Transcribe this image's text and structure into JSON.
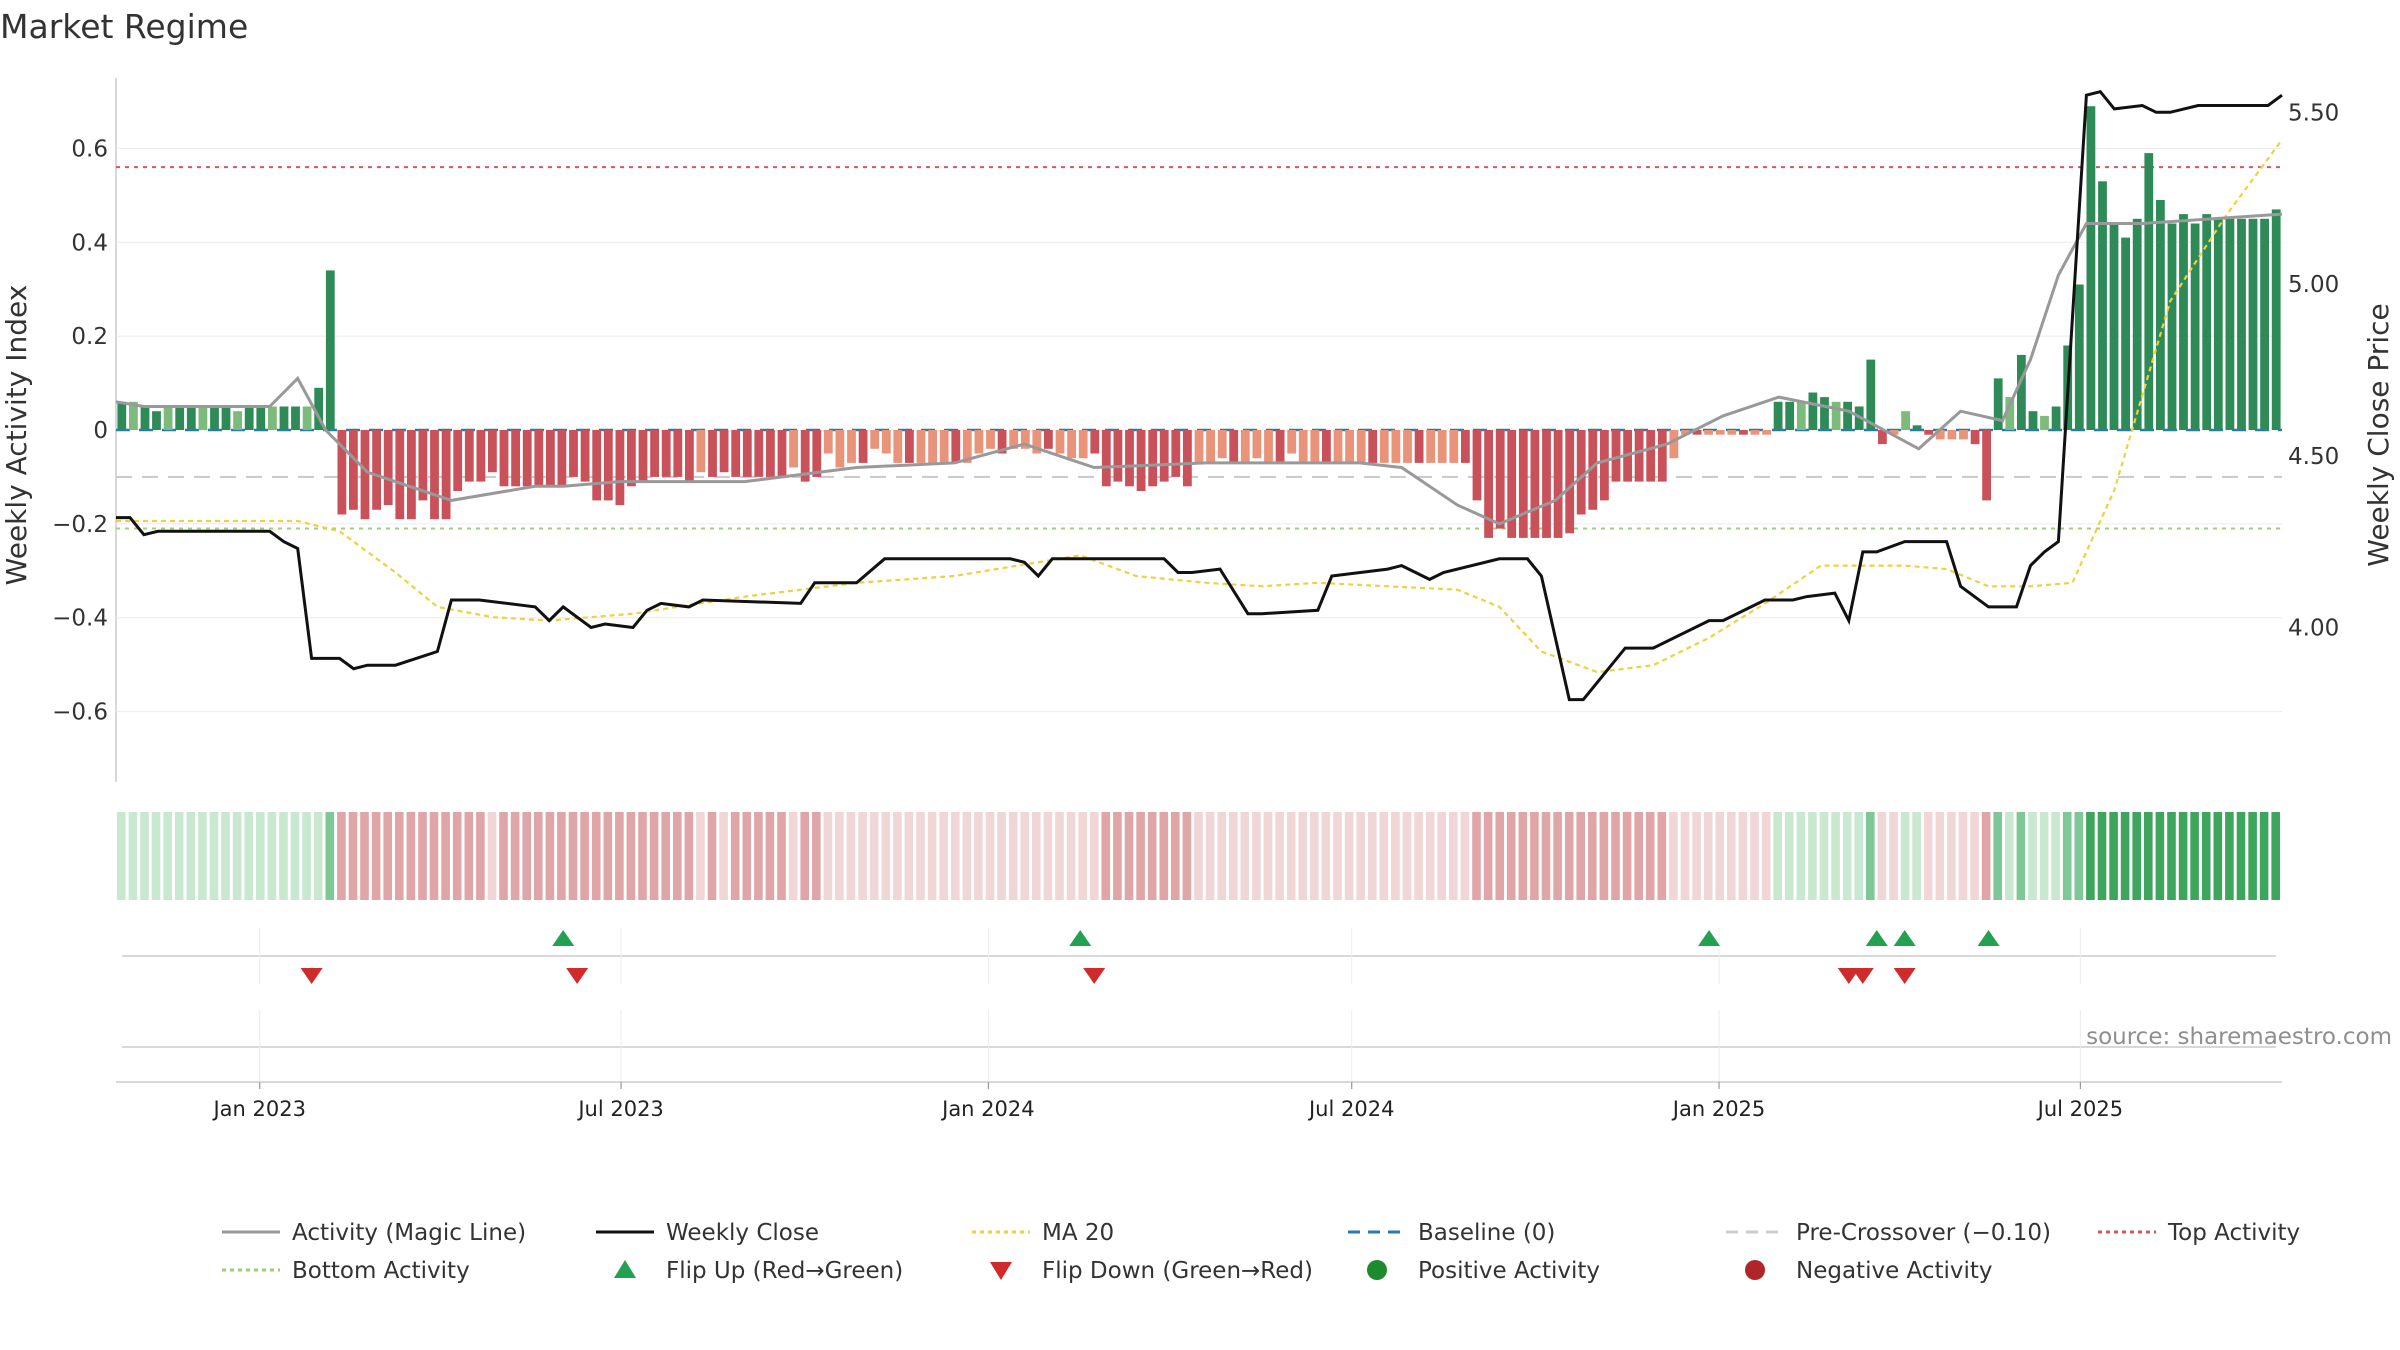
{
  "page": {
    "title": "Market Regime",
    "source": "source: sharemaestro.com"
  },
  "chart_data": {
    "type": "bar",
    "title": "Market Regime",
    "ylabel": "Weekly Activity Index",
    "y2label": "Weekly Close Price",
    "ylim": [
      -0.75,
      0.75
    ],
    "y2lim": [
      3.55,
      5.6
    ],
    "yticks": [
      {
        "value": 0.6,
        "label": "0.6"
      },
      {
        "value": 0.4,
        "label": "0.4"
      },
      {
        "value": 0.2,
        "label": "0.2"
      },
      {
        "value": 0,
        "label": "0"
      },
      {
        "value": -0.2,
        "label": "−0.2"
      },
      {
        "value": -0.4,
        "label": "−0.4"
      },
      {
        "value": -0.6,
        "label": "−0.6"
      }
    ],
    "y2ticks": [
      {
        "value": 5.5,
        "label": "5.50"
      },
      {
        "value": 5.0,
        "label": "5.00"
      },
      {
        "value": 4.5,
        "label": "4.50"
      },
      {
        "value": 4.0,
        "label": "4.00"
      }
    ],
    "x_start": "2022-10-21",
    "x_end": "2025-10-10",
    "xticks": [
      {
        "date": "2023-01-01",
        "label": "Jan 2023"
      },
      {
        "date": "2023-07-01",
        "label": "Jul 2023"
      },
      {
        "date": "2024-01-01",
        "label": "Jan 2024"
      },
      {
        "date": "2024-07-01",
        "label": "Jul 2024"
      },
      {
        "date": "2025-01-01",
        "label": "Jan 2025"
      },
      {
        "date": "2025-07-01",
        "label": "Jul 2025"
      }
    ],
    "reference_lines": {
      "baseline": 0,
      "pre_crossover": -0.1,
      "top_activity": 0.56,
      "bottom_activity": -0.21
    },
    "activity_index": [
      0.06,
      0.06,
      0.05,
      0.04,
      0.05,
      0.05,
      0.05,
      0.05,
      0.05,
      0.05,
      0.04,
      0.05,
      0.05,
      0.05,
      0.05,
      0.05,
      0.05,
      0.09,
      0.34,
      -0.18,
      -0.17,
      -0.19,
      -0.17,
      -0.16,
      -0.19,
      -0.19,
      -0.15,
      -0.19,
      -0.19,
      -0.13,
      -0.11,
      -0.11,
      -0.09,
      -0.12,
      -0.12,
      -0.12,
      -0.12,
      -0.12,
      -0.12,
      -0.1,
      -0.11,
      -0.15,
      -0.15,
      -0.16,
      -0.12,
      -0.11,
      -0.1,
      -0.1,
      -0.1,
      -0.11,
      -0.09,
      -0.1,
      -0.09,
      -0.1,
      -0.1,
      -0.1,
      -0.1,
      -0.1,
      -0.08,
      -0.11,
      -0.1,
      -0.05,
      -0.08,
      -0.07,
      -0.07,
      -0.04,
      -0.05,
      -0.07,
      -0.07,
      -0.07,
      -0.07,
      -0.07,
      -0.07,
      -0.07,
      -0.05,
      -0.04,
      -0.05,
      -0.04,
      -0.04,
      -0.05,
      -0.04,
      -0.05,
      -0.06,
      -0.06,
      -0.05,
      -0.12,
      -0.11,
      -0.12,
      -0.13,
      -0.12,
      -0.11,
      -0.1,
      -0.12,
      -0.07,
      -0.07,
      -0.06,
      -0.07,
      -0.07,
      -0.06,
      -0.07,
      -0.07,
      -0.05,
      -0.07,
      -0.07,
      -0.07,
      -0.07,
      -0.07,
      -0.07,
      -0.07,
      -0.07,
      -0.07,
      -0.07,
      -0.07,
      -0.07,
      -0.07,
      -0.07,
      -0.07,
      -0.15,
      -0.23,
      -0.21,
      -0.23,
      -0.23,
      -0.23,
      -0.23,
      -0.23,
      -0.22,
      -0.18,
      -0.17,
      -0.15,
      -0.11,
      -0.11,
      -0.11,
      -0.11,
      -0.11,
      -0.06,
      -0.01,
      -0.01,
      -0.01,
      -0.01,
      -0.01,
      -0.01,
      -0.01,
      -0.01,
      0.06,
      0.06,
      0.06,
      0.08,
      0.07,
      0.06,
      0.06,
      0.05,
      0.15,
      -0.03,
      -0.01,
      0.04,
      0.01,
      -0.01,
      -0.02,
      -0.02,
      -0.02,
      -0.03,
      -0.15,
      0.11,
      0.07,
      0.16,
      0.04,
      0.03,
      0.05,
      0.18,
      0.31,
      0.69,
      0.53,
      0.44,
      0.41,
      0.45,
      0.59,
      0.49,
      0.44,
      0.46,
      0.44,
      0.46,
      0.45,
      0.45,
      0.45,
      0.45,
      0.45,
      0.47
    ],
    "activity_colors": {
      "strong_positive": "#2e8b57",
      "weak_positive": "#7dbb7d",
      "strong_negative": "#c9515a",
      "weak_negative": "#e8937a"
    },
    "series": [
      {
        "name": "Activity (Magic Line)",
        "color": "#999999",
        "x": [
          "2022-10-21",
          "2022-11-04",
          "2023-01-06",
          "2023-01-20",
          "2023-02-03",
          "2023-02-24",
          "2023-04-07",
          "2023-05-19",
          "2023-06-02",
          "2023-06-30",
          "2023-09-01",
          "2023-10-27",
          "2023-12-15",
          "2024-01-19",
          "2024-02-09",
          "2024-02-23",
          "2024-04-19",
          "2024-06-07",
          "2024-07-05",
          "2024-07-26",
          "2024-08-23",
          "2024-09-13",
          "2024-10-11",
          "2024-11-01",
          "2024-12-06",
          "2025-01-03",
          "2025-01-31",
          "2025-03-07",
          "2025-04-11",
          "2025-05-02",
          "2025-05-23",
          "2025-06-06",
          "2025-06-20",
          "2025-07-04",
          "2025-08-01",
          "2025-10-10"
        ],
        "values": [
          0.06,
          0.05,
          0.05,
          0.11,
          0.0,
          -0.09,
          -0.15,
          -0.12,
          -0.12,
          -0.11,
          -0.11,
          -0.08,
          -0.07,
          -0.03,
          -0.06,
          -0.08,
          -0.07,
          -0.07,
          -0.07,
          -0.08,
          -0.16,
          -0.2,
          -0.15,
          -0.07,
          -0.03,
          0.03,
          0.07,
          0.04,
          -0.04,
          0.04,
          0.02,
          0.15,
          0.33,
          0.44,
          0.44,
          0.46
        ]
      },
      {
        "name": "Weekly Close",
        "color": "#111111",
        "x": [
          "2022-10-21",
          "2022-10-28",
          "2022-11-04",
          "2022-11-11",
          "2023-01-06",
          "2023-01-13",
          "2023-01-20",
          "2023-01-27",
          "2023-02-10",
          "2023-02-17",
          "2023-02-24",
          "2023-03-03",
          "2023-03-10",
          "2023-03-31",
          "2023-04-07",
          "2023-04-21",
          "2023-05-19",
          "2023-05-26",
          "2023-06-02",
          "2023-06-16",
          "2023-06-23",
          "2023-07-07",
          "2023-07-14",
          "2023-07-21",
          "2023-08-04",
          "2023-08-11",
          "2023-09-29",
          "2023-10-06",
          "2023-10-27",
          "2023-11-10",
          "2023-11-24",
          "2023-12-08",
          "2024-01-12",
          "2024-01-19",
          "2024-01-26",
          "2024-02-02",
          "2024-02-16",
          "2024-03-29",
          "2024-04-05",
          "2024-04-12",
          "2024-04-26",
          "2024-05-10",
          "2024-05-17",
          "2024-06-14",
          "2024-06-21",
          "2024-07-19",
          "2024-07-26",
          "2024-08-09",
          "2024-08-16",
          "2024-09-13",
          "2024-09-27",
          "2024-10-04",
          "2024-10-18",
          "2024-10-25",
          "2024-11-15",
          "2024-11-29",
          "2024-12-27",
          "2025-01-03",
          "2025-01-24",
          "2025-02-07",
          "2025-02-14",
          "2025-02-28",
          "2025-03-07",
          "2025-03-14",
          "2025-03-21",
          "2025-04-04",
          "2025-04-25",
          "2025-05-02",
          "2025-05-16",
          "2025-05-30",
          "2025-06-06",
          "2025-06-13",
          "2025-06-20",
          "2025-06-27",
          "2025-07-04",
          "2025-07-11",
          "2025-07-18",
          "2025-08-01",
          "2025-08-08",
          "2025-08-15",
          "2025-08-29",
          "2025-09-19",
          "2025-10-03",
          "2025-10-10"
        ],
        "values": [
          4.32,
          4.32,
          4.27,
          4.28,
          4.28,
          4.25,
          4.23,
          3.91,
          3.91,
          3.88,
          3.89,
          3.89,
          3.89,
          3.93,
          4.08,
          4.08,
          4.06,
          4.02,
          4.06,
          4.0,
          4.01,
          4.0,
          4.05,
          4.07,
          4.06,
          4.08,
          4.07,
          4.13,
          4.13,
          4.2,
          4.2,
          4.2,
          4.2,
          4.19,
          4.15,
          4.2,
          4.2,
          4.2,
          4.16,
          4.16,
          4.17,
          4.04,
          4.04,
          4.05,
          4.15,
          4.17,
          4.18,
          4.14,
          4.16,
          4.2,
          4.2,
          4.15,
          3.79,
          3.79,
          3.94,
          3.94,
          4.02,
          4.02,
          4.08,
          4.08,
          4.09,
          4.1,
          4.02,
          4.22,
          4.22,
          4.25,
          4.25,
          4.12,
          4.06,
          4.06,
          4.18,
          4.22,
          4.25,
          4.9,
          5.55,
          5.56,
          5.51,
          5.52,
          5.5,
          5.5,
          5.52,
          5.52,
          5.52,
          5.55
        ]
      },
      {
        "name": "MA 20",
        "color": "#f0d040",
        "x": [
          "2022-10-21",
          "2023-01-20",
          "2023-02-10",
          "2023-03-10",
          "2023-03-31",
          "2023-04-28",
          "2023-05-26",
          "2023-07-07",
          "2023-09-01",
          "2023-10-27",
          "2023-12-15",
          "2024-02-16",
          "2024-03-15",
          "2024-04-19",
          "2024-05-17",
          "2024-06-14",
          "2024-07-19",
          "2024-08-23",
          "2024-09-13",
          "2024-10-04",
          "2024-11-01",
          "2024-11-29",
          "2024-12-27",
          "2025-01-24",
          "2025-02-21",
          "2025-04-04",
          "2025-04-25",
          "2025-05-16",
          "2025-06-06",
          "2025-06-27",
          "2025-07-18",
          "2025-08-15",
          "2025-09-12",
          "2025-10-10"
        ],
        "values": [
          4.31,
          4.31,
          4.28,
          4.16,
          4.06,
          4.03,
          4.02,
          4.04,
          4.09,
          4.13,
          4.15,
          4.21,
          4.15,
          4.13,
          4.12,
          4.13,
          4.12,
          4.11,
          4.06,
          3.93,
          3.87,
          3.89,
          3.97,
          4.07,
          4.18,
          4.18,
          4.17,
          4.12,
          4.12,
          4.13,
          4.4,
          4.95,
          5.2,
          5.42
        ]
      }
    ],
    "regime_strip": {
      "strong_positive": "#3ea55c",
      "positive": "#7fc796",
      "weak_positive": "#c8e8d0",
      "strong_negative": "#e0a5a6",
      "weak_negative": "#f0d6d6"
    },
    "flip_up_dates": [
      "2023-06-02",
      "2024-02-16",
      "2024-12-27",
      "2025-03-21",
      "2025-04-04",
      "2025-05-16"
    ],
    "flip_down_dates": [
      "2023-01-27",
      "2023-06-09",
      "2024-02-23",
      "2025-03-07",
      "2025-03-14",
      "2025-04-04"
    ],
    "legend": [
      {
        "label": "Activity (Magic Line)",
        "type": "line",
        "color": "#999999",
        "dash": ""
      },
      {
        "label": "Weekly Close",
        "type": "line",
        "color": "#111111",
        "dash": ""
      },
      {
        "label": "MA 20",
        "type": "line",
        "color": "#f0d040",
        "dash": "4,4"
      },
      {
        "label": "Baseline (0)",
        "type": "line",
        "color": "#2a7ab0",
        "dash": "12,8"
      },
      {
        "label": "Pre-Crossover (−0.10)",
        "type": "line",
        "color": "#cccccc",
        "dash": "12,8"
      },
      {
        "label": "Top Activity",
        "type": "line",
        "color": "#d05a60",
        "dash": "4,4"
      },
      {
        "label": "Bottom Activity",
        "type": "line",
        "color": "#9ad07a",
        "dash": "4,4"
      },
      {
        "label": "Flip Up (Red→Green)",
        "type": "triangle-up",
        "color": "#23a050"
      },
      {
        "label": "Flip Down (Green→Red)",
        "type": "triangle-down",
        "color": "#d02a2a"
      },
      {
        "label": "Positive Activity",
        "type": "circle",
        "color": "#1e8a2e"
      },
      {
        "label": "Negative Activity",
        "type": "circle",
        "color": "#b0252a"
      }
    ]
  }
}
